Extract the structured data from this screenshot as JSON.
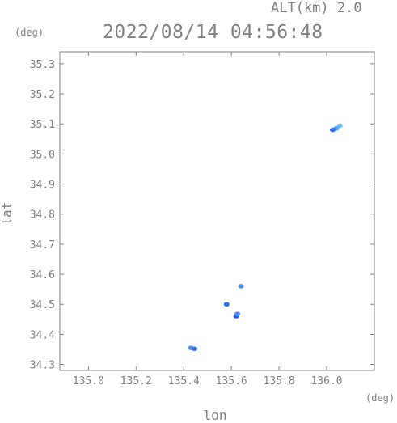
{
  "header": {
    "alt_label": "ALT(km) 2.0",
    "datetime": "2022/08/14 04:56:48"
  },
  "chart_data": {
    "type": "scatter",
    "title": "2022/08/14 04:56:48",
    "subtitle": "ALT(km) 2.0",
    "xlabel": "lon",
    "ylabel": "lat",
    "x_unit": "(deg)",
    "y_unit": "(deg)",
    "xlim": [
      134.88,
      136.2
    ],
    "ylim": [
      34.28,
      35.34
    ],
    "xticks": [
      135.0,
      135.2,
      135.4,
      135.6,
      135.8,
      136.0
    ],
    "xtick_labels": [
      "135.0",
      "135.2",
      "135.4",
      "135.6",
      "135.8",
      "136.0"
    ],
    "yticks": [
      34.3,
      34.4,
      34.5,
      34.6,
      34.7,
      34.8,
      34.9,
      35.0,
      35.1,
      35.2,
      35.3
    ],
    "ytick_labels": [
      "34.3",
      "34.4",
      "34.5",
      "34.6",
      "34.7",
      "34.8",
      "34.9",
      "35.0",
      "35.1",
      "35.2",
      "35.3"
    ],
    "grid": false,
    "points": [
      {
        "lon": 136.04,
        "lat": 35.085,
        "color": "#4aa0ff"
      },
      {
        "lon": 136.055,
        "lat": 35.094,
        "color": "#6ab8ff"
      },
      {
        "lon": 136.025,
        "lat": 35.08,
        "color": "#2f6fe0"
      },
      {
        "lon": 135.64,
        "lat": 34.56,
        "color": "#4a90f0"
      },
      {
        "lon": 135.58,
        "lat": 34.5,
        "color": "#3070e0"
      },
      {
        "lon": 135.62,
        "lat": 34.46,
        "color": "#2f5fe0"
      },
      {
        "lon": 135.625,
        "lat": 34.468,
        "color": "#4a8cf5"
      },
      {
        "lon": 135.43,
        "lat": 34.355,
        "color": "#4a90f0"
      },
      {
        "lon": 135.445,
        "lat": 34.352,
        "color": "#3070e0"
      }
    ],
    "colors": {
      "axis": "#808080",
      "text": "#808080",
      "echo": "#3c82f0"
    }
  }
}
